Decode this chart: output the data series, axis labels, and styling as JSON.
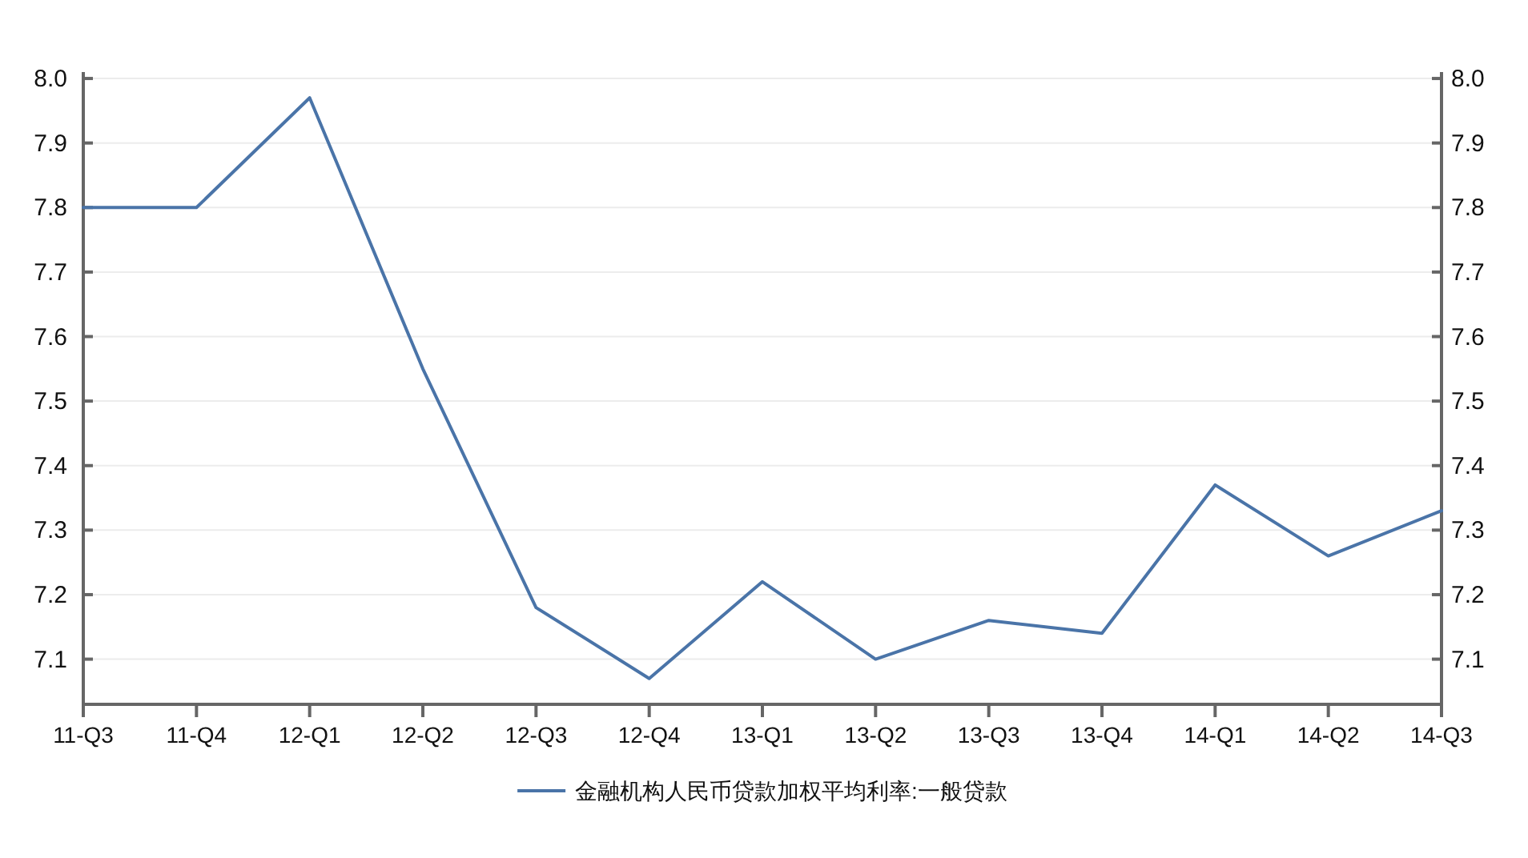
{
  "chart_data": {
    "type": "line",
    "categories": [
      "11-Q3",
      "11-Q4",
      "12-Q1",
      "12-Q2",
      "12-Q3",
      "12-Q4",
      "13-Q1",
      "13-Q2",
      "13-Q3",
      "13-Q4",
      "14-Q1",
      "14-Q2",
      "14-Q3"
    ],
    "series": [
      {
        "name": "金融机构人民币贷款加权平均利率:一般贷款",
        "color": "#4a74a8",
        "values": [
          7.8,
          7.8,
          7.97,
          7.55,
          7.18,
          7.07,
          7.22,
          7.1,
          7.16,
          7.14,
          7.37,
          7.26,
          7.33
        ]
      }
    ],
    "ylim": [
      7.03,
      8.01
    ],
    "yticks": [
      7.1,
      7.2,
      7.3,
      7.4,
      7.5,
      7.6,
      7.7,
      7.8,
      7.9,
      {
        "value": 8,
        "label": "8.0"
      }
    ],
    "y2lim": [
      7.03,
      8.01
    ],
    "y2ticks": [
      7.1,
      7.2,
      7.3,
      7.4,
      7.5,
      7.6,
      7.7,
      7.8,
      7.9,
      {
        "value": 8,
        "label": "8.0"
      }
    ],
    "grid": "y",
    "legend": "bottom",
    "line_style": "solid",
    "marker": "none"
  }
}
